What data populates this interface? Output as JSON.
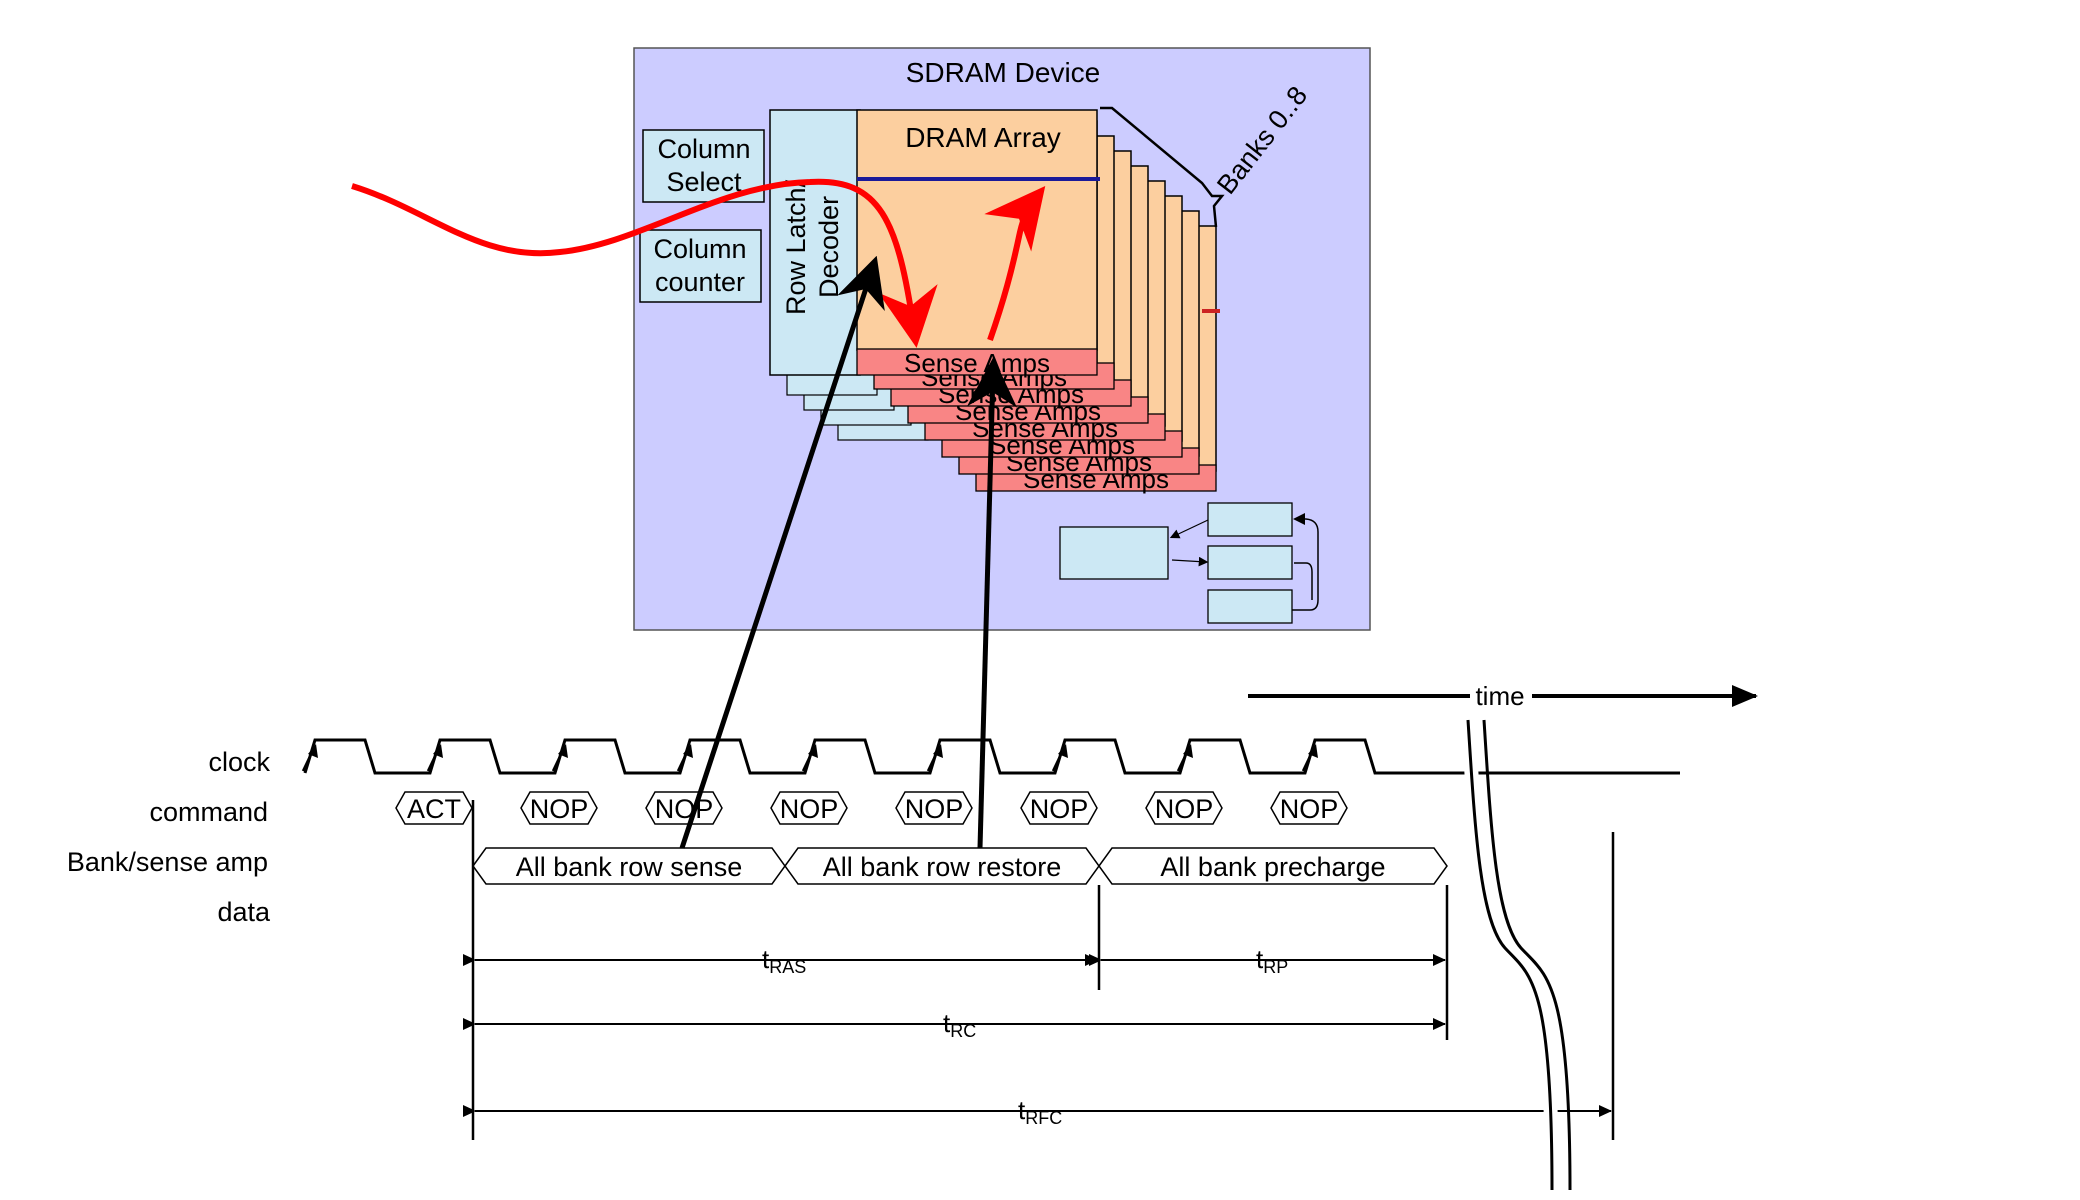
{
  "device": {
    "title": "SDRAM Device",
    "column_select": [
      "Column",
      "Select"
    ],
    "column_counter": [
      "Column",
      "counter"
    ],
    "row_latch_decoder": [
      "Row Latch/",
      "Decoder"
    ],
    "dram_array": "DRAM Array",
    "banks": "Banks 0..8",
    "sense_amps": "Sense Amps"
  },
  "timing": {
    "time_label": "time",
    "row_labels": {
      "clock": "clock",
      "command": "command",
      "bank": "Bank/sense amp",
      "data": "data"
    },
    "commands": [
      "ACT",
      "NOP",
      "NOP",
      "NOP",
      "NOP",
      "NOP",
      "NOP",
      "NOP"
    ],
    "phases": [
      "All bank row sense",
      "All bank row restore",
      "All bank precharge"
    ],
    "intervals": {
      "tras": {
        "main": "t",
        "sub": "RAS"
      },
      "trp": {
        "main": "t",
        "sub": "RP"
      },
      "trc": {
        "main": "t",
        "sub": "RC"
      },
      "trfc": {
        "main": "t",
        "sub": "RFC"
      }
    }
  },
  "colors": {
    "device_bg": "#ccccff",
    "light_blue": "#cce8f4",
    "array_orange": "#fccf9f",
    "sense_red": "#f98585",
    "flow_red": "#ff0000",
    "bitline_blue": "#1a1a99"
  }
}
